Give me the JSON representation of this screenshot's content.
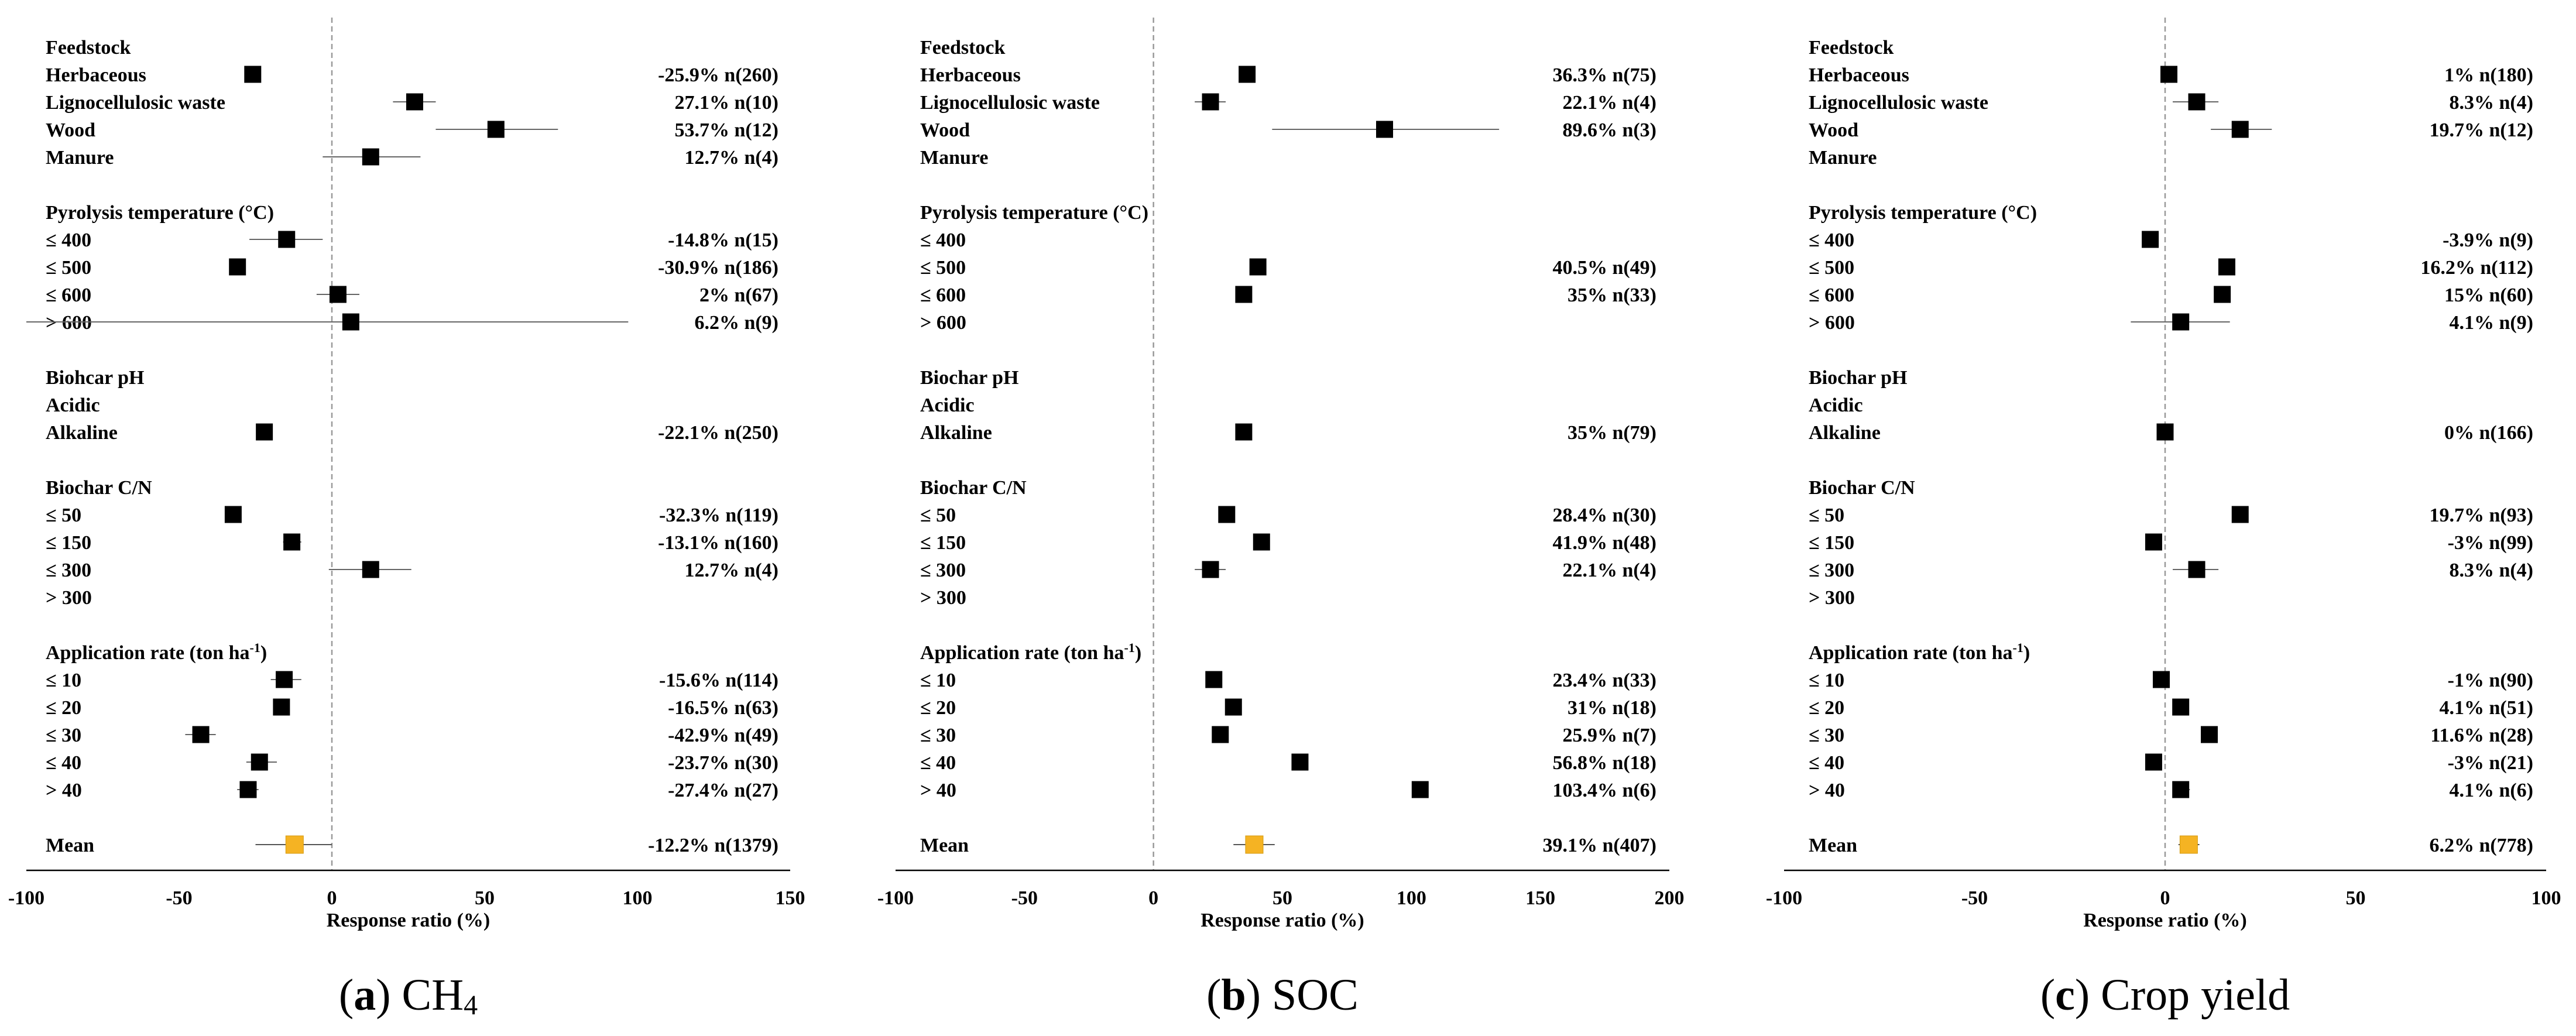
{
  "panels": [
    {
      "id": "a",
      "caption_letter": "(a)",
      "caption_text": "CH",
      "caption_sub": "4",
      "chart_data": {
        "type": "forest",
        "xlabel": "Response ratio (%)",
        "xlim": [
          -100,
          150
        ],
        "xticks": [
          -100,
          -50,
          0,
          50,
          100,
          150
        ],
        "tick_labels": [
          "-100",
          "-50",
          "0",
          "50",
          "100",
          "150"
        ],
        "series": [
          {
            "name": "CH4 response",
            "color": "#000000",
            "mean_color": "#f5b323"
          }
        ],
        "groups": [
          {
            "title": "Feedstock",
            "items": [
              {
                "label": "Herbaceous",
                "value": -25.9,
                "ci": [
                  -27.5,
                  -24.3
                ],
                "text": "-25.9% n(260)"
              },
              {
                "label": "Lignocellulosic waste",
                "value": 27.1,
                "ci": [
                  20,
                  34
                ],
                "text": "27.1% n(10)"
              },
              {
                "label": "Wood",
                "value": 53.7,
                "ci": [
                  34,
                  74
                ],
                "text": "53.7% n(12)"
              },
              {
                "label": "Manure",
                "value": 12.7,
                "ci": [
                  -3,
                  29
                ],
                "text": "12.7% n(4)"
              }
            ]
          },
          {
            "title": "Pyrolysis temperature (°C)",
            "items": [
              {
                "label": "≤ 400",
                "value": -14.8,
                "ci": [
                  -27,
                  -3
                ],
                "text": "-14.8% n(15)"
              },
              {
                "label": "≤ 500",
                "value": -30.9,
                "ci": [
                  -32.5,
                  -29.3
                ],
                "text": "-30.9% n(186)"
              },
              {
                "label": "≤ 600",
                "value": 2,
                "ci": [
                  -5,
                  9
                ],
                "text": "2% n(67)"
              },
              {
                "label": "> 600",
                "value": 6.2,
                "ci": [
                  -100,
                  97
                ],
                "text": "6.2% n(9)"
              }
            ]
          },
          {
            "title": "Biohcar pH",
            "items": [
              {
                "label": "Acidic",
                "value": null,
                "ci": null,
                "text": ""
              },
              {
                "label": "Alkaline",
                "value": -22.1,
                "ci": [
                  -23.7,
                  -20.5
                ],
                "text": "-22.1% n(250)"
              }
            ]
          },
          {
            "title": "Biochar C/N",
            "items": [
              {
                "label": "≤ 50",
                "value": -32.3,
                "ci": [
                  -34,
                  -30.6
                ],
                "text": "-32.3% n(119)"
              },
              {
                "label": "≤ 150",
                "value": -13.1,
                "ci": [
                  -16,
                  -10
                ],
                "text": "-13.1% n(160)"
              },
              {
                "label": "≤ 300",
                "value": 12.7,
                "ci": [
                  -1,
                  26
                ],
                "text": "12.7% n(4)"
              },
              {
                "label": "> 300",
                "value": null,
                "ci": null,
                "text": ""
              }
            ]
          },
          {
            "title": "Application rate (ton ha",
            "title_sup": "-1",
            "title_end": ")",
            "items": [
              {
                "label": "≤ 10",
                "value": -15.6,
                "ci": [
                  -20,
                  -10
                ],
                "text": "-15.6% n(114)"
              },
              {
                "label": "≤ 20",
                "value": -16.5,
                "ci": [
                  -18.3,
                  -14.7
                ],
                "text": "-16.5% n(63)"
              },
              {
                "label": "≤ 30",
                "value": -42.9,
                "ci": [
                  -48,
                  -38
                ],
                "text": "-42.9% n(49)"
              },
              {
                "label": "≤ 40",
                "value": -23.7,
                "ci": [
                  -28,
                  -18
                ],
                "text": "-23.7% n(30)"
              },
              {
                "label": "> 40",
                "value": -27.4,
                "ci": [
                  -31,
                  -24
                ],
                "text": "-27.4% n(27)"
              }
            ]
          }
        ],
        "mean": {
          "label": "Mean",
          "value": -12.2,
          "ci": [
            -25,
            0
          ],
          "text": "-12.2% n(1379)"
        }
      }
    },
    {
      "id": "b",
      "caption_letter": "(b)",
      "caption_text": "SOC",
      "caption_sub": "",
      "chart_data": {
        "type": "forest",
        "xlabel": "Response ratio (%)",
        "xlim": [
          -100,
          200
        ],
        "xticks": [
          -100,
          -50,
          0,
          50,
          100,
          150,
          200
        ],
        "tick_labels": [
          "-100",
          "-50",
          "0",
          "50",
          "100",
          "150",
          "200"
        ],
        "series": [
          {
            "name": "SOC response",
            "color": "#000000",
            "mean_color": "#f5b323"
          }
        ],
        "groups": [
          {
            "title": "Feedstock",
            "items": [
              {
                "label": "Herbaceous",
                "value": 36.3,
                "ci": [
                  34.5,
                  38.1
                ],
                "text": "36.3% n(75)"
              },
              {
                "label": "Lignocellulosic waste",
                "value": 22.1,
                "ci": [
                  16,
                  28
                ],
                "text": "22.1% n(4)"
              },
              {
                "label": "Wood",
                "value": 89.6,
                "ci": [
                  46,
                  134
                ],
                "text": "89.6% n(3)"
              },
              {
                "label": "Manure",
                "value": null,
                "ci": null,
                "text": ""
              }
            ]
          },
          {
            "title": "Pyrolysis temperature (°C)",
            "items": [
              {
                "label": "≤ 400",
                "value": null,
                "ci": null,
                "text": ""
              },
              {
                "label": "≤ 500",
                "value": 40.5,
                "ci": [
                  38.7,
                  42.3
                ],
                "text": "40.5% n(49)"
              },
              {
                "label": "≤ 600",
                "value": 35,
                "ci": [
                  33.2,
                  36.8
                ],
                "text": "35% n(33)"
              },
              {
                "label": "> 600",
                "value": null,
                "ci": null,
                "text": ""
              }
            ]
          },
          {
            "title": "Biochar pH",
            "items": [
              {
                "label": "Acidic",
                "value": null,
                "ci": null,
                "text": ""
              },
              {
                "label": "Alkaline",
                "value": 35,
                "ci": [
                  33.2,
                  36.8
                ],
                "text": "35% n(79)"
              }
            ]
          },
          {
            "title": "Biochar C/N",
            "items": [
              {
                "label": "≤ 50",
                "value": 28.4,
                "ci": [
                  26.6,
                  30.2
                ],
                "text": "28.4% n(30)"
              },
              {
                "label": "≤ 150",
                "value": 41.9,
                "ci": [
                  40.1,
                  43.7
                ],
                "text": "41.9% n(48)"
              },
              {
                "label": "≤ 300",
                "value": 22.1,
                "ci": [
                  16,
                  28
                ],
                "text": "22.1% n(4)"
              },
              {
                "label": "> 300",
                "value": null,
                "ci": null,
                "text": ""
              }
            ]
          },
          {
            "title": "Application rate (ton ha",
            "title_sup": "-1",
            "title_end": ")",
            "items": [
              {
                "label": "≤ 10",
                "value": 23.4,
                "ci": [
                  21.6,
                  25.2
                ],
                "text": "23.4% n(33)"
              },
              {
                "label": "≤ 20",
                "value": 31,
                "ci": [
                  29.2,
                  32.8
                ],
                "text": "31% n(18)"
              },
              {
                "label": "≤ 30",
                "value": 25.9,
                "ci": [
                  23,
                  29
                ],
                "text": "25.9% n(7)"
              },
              {
                "label": "≤ 40",
                "value": 56.8,
                "ci": [
                  55,
                  58.6
                ],
                "text": "56.8% n(18)"
              },
              {
                "label": "> 40",
                "value": 103.4,
                "ci": [
                  101.6,
                  105.2
                ],
                "text": "103.4% n(6)"
              }
            ]
          }
        ],
        "mean": {
          "label": "Mean",
          "value": 39.1,
          "ci": [
            31,
            47
          ],
          "text": "39.1% n(407)"
        }
      }
    },
    {
      "id": "c",
      "caption_letter": "(c)",
      "caption_text": "Crop yield",
      "caption_sub": "",
      "chart_data": {
        "type": "forest",
        "xlabel": "Response ratio (%)",
        "xlim": [
          -100,
          100
        ],
        "xticks": [
          -100,
          -50,
          0,
          50,
          100
        ],
        "tick_labels": [
          "-100",
          "-50",
          "0",
          "50",
          "100"
        ],
        "series": [
          {
            "name": "Crop yield response",
            "color": "#000000",
            "mean_color": "#f5b323"
          }
        ],
        "groups": [
          {
            "title": "Feedstock",
            "items": [
              {
                "label": "Herbaceous",
                "value": 1,
                "ci": [
                  -0.3,
                  2.3
                ],
                "text": "1% n(180)"
              },
              {
                "label": "Lignocellulosic waste",
                "value": 8.3,
                "ci": [
                  2,
                  14
                ],
                "text": "8.3% n(4)"
              },
              {
                "label": "Wood",
                "value": 19.7,
                "ci": [
                  12,
                  28
                ],
                "text": "19.7% n(12)"
              },
              {
                "label": "Manure",
                "value": null,
                "ci": null,
                "text": ""
              }
            ]
          },
          {
            "title": "Pyrolysis temperature (°C)",
            "items": [
              {
                "label": "≤ 400",
                "value": -3.9,
                "ci": [
                  -6,
                  -1.8
                ],
                "text": "-3.9% n(9)"
              },
              {
                "label": "≤ 500",
                "value": 16.2,
                "ci": [
                  14.9,
                  17.5
                ],
                "text": "16.2% n(112)"
              },
              {
                "label": "≤ 600",
                "value": 15,
                "ci": [
                  13.7,
                  16.3
                ],
                "text": "15% n(60)"
              },
              {
                "label": "> 600",
                "value": 4.1,
                "ci": [
                  -9,
                  17
                ],
                "text": "4.1% n(9)"
              }
            ]
          },
          {
            "title": "Biochar pH",
            "items": [
              {
                "label": "Acidic",
                "value": null,
                "ci": null,
                "text": ""
              },
              {
                "label": "Alkaline",
                "value": 0,
                "ci": [
                  -1.3,
                  1.3
                ],
                "text": "0% n(166)"
              }
            ]
          },
          {
            "title": "Biochar C/N",
            "items": [
              {
                "label": "≤ 50",
                "value": 19.7,
                "ci": [
                  18.4,
                  21
                ],
                "text": "19.7% n(93)"
              },
              {
                "label": "≤ 150",
                "value": -3,
                "ci": [
                  -4.3,
                  -1.7
                ],
                "text": "-3% n(99)"
              },
              {
                "label": "≤ 300",
                "value": 8.3,
                "ci": [
                  2,
                  14
                ],
                "text": "8.3% n(4)"
              },
              {
                "label": "> 300",
                "value": null,
                "ci": null,
                "text": ""
              }
            ]
          },
          {
            "title": "Application rate (ton ha",
            "title_sup": "-1",
            "title_end": ")",
            "items": [
              {
                "label": "≤ 10",
                "value": -1,
                "ci": [
                  -2.3,
                  0.3
                ],
                "text": "-1% n(90)"
              },
              {
                "label": "≤ 20",
                "value": 4.1,
                "ci": [
                  2.8,
                  5.4
                ],
                "text": "4.1% n(51)"
              },
              {
                "label": "≤ 30",
                "value": 11.6,
                "ci": [
                  9.8,
                  13.4
                ],
                "text": "11.6% n(28)"
              },
              {
                "label": "≤ 40",
                "value": -3,
                "ci": [
                  -4.3,
                  -1.7
                ],
                "text": "-3% n(21)"
              },
              {
                "label": "> 40",
                "value": 4.1,
                "ci": [
                  2,
                  6.5
                ],
                "text": "4.1% n(6)"
              }
            ]
          }
        ],
        "mean": {
          "label": "Mean",
          "value": 6.2,
          "ci": [
            3.5,
            9
          ],
          "text": "6.2% n(778)"
        }
      }
    }
  ]
}
